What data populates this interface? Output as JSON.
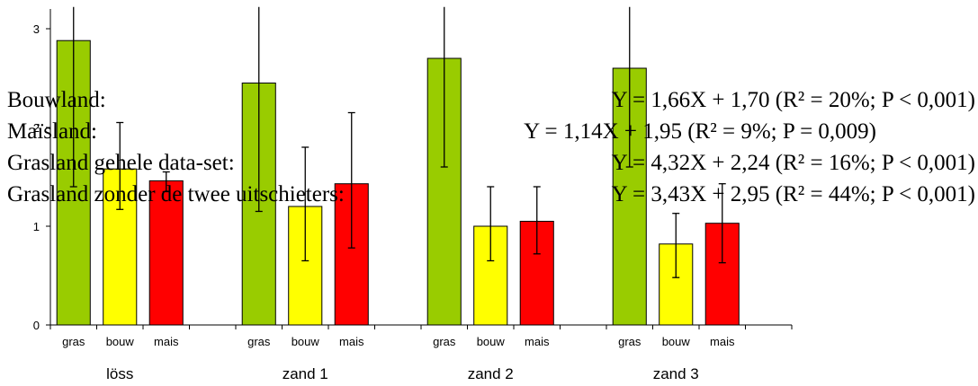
{
  "chart_data": {
    "type": "bar",
    "ylim": [
      0,
      3.2
    ],
    "yticks": [
      0,
      1,
      2,
      3
    ],
    "groups": [
      {
        "name": "löss",
        "bars": [
          {
            "category": "gras",
            "value": 2.88,
            "err_low": 1.4,
            "err_high": 3.25,
            "color": "#99cc00"
          },
          {
            "category": "bouw",
            "value": 1.58,
            "err_low": 1.17,
            "err_high": 2.05,
            "color": "#ffff00"
          },
          {
            "category": "mais",
            "value": 1.46,
            "err_low": 1.35,
            "err_high": 1.55,
            "color": "#ff0000"
          }
        ]
      },
      {
        "name": "zand 1",
        "bars": [
          {
            "category": "gras",
            "value": 2.45,
            "err_low": 1.15,
            "err_high": 3.25,
            "color": "#99cc00"
          },
          {
            "category": "bouw",
            "value": 1.2,
            "err_low": 0.65,
            "err_high": 1.8,
            "color": "#ffff00"
          },
          {
            "category": "mais",
            "value": 1.43,
            "err_low": 0.78,
            "err_high": 2.15,
            "color": "#ff0000"
          }
        ]
      },
      {
        "name": "zand 2",
        "bars": [
          {
            "category": "gras",
            "value": 2.7,
            "err_low": 1.6,
            "err_high": 3.25,
            "color": "#99cc00"
          },
          {
            "category": "bouw",
            "value": 1.0,
            "err_low": 0.65,
            "err_high": 1.4,
            "color": "#ffff00"
          },
          {
            "category": "mais",
            "value": 1.05,
            "err_low": 0.72,
            "err_high": 1.4,
            "color": "#ff0000"
          }
        ]
      },
      {
        "name": "zand 3",
        "bars": [
          {
            "category": "gras",
            "value": 2.6,
            "err_low": 1.6,
            "err_high": 3.25,
            "color": "#99cc00"
          },
          {
            "category": "bouw",
            "value": 0.82,
            "err_low": 0.48,
            "err_high": 1.13,
            "color": "#ffff00"
          },
          {
            "category": "mais",
            "value": 1.03,
            "err_low": 0.63,
            "err_high": 1.43,
            "color": "#ff0000"
          }
        ]
      }
    ]
  },
  "equations": [
    {
      "label": "Bouwland:",
      "formula": "Y = 1,66X + 1,70 (R² = 20%; P < 0,001)"
    },
    {
      "label": "Maïsland:",
      "formula": "Y = 1,14X + 1,95 (R² = 9%; P = 0,009)"
    },
    {
      "label": "Grasland gehele data-set:",
      "formula": "Y = 4,32X + 2,24 (R² = 16%; P < 0,001)"
    },
    {
      "label": "Grasland zonder de twee uitschieters:",
      "formula": "Y = 3,43X + 2,95 (R² = 44%; P < 0,001)"
    }
  ]
}
